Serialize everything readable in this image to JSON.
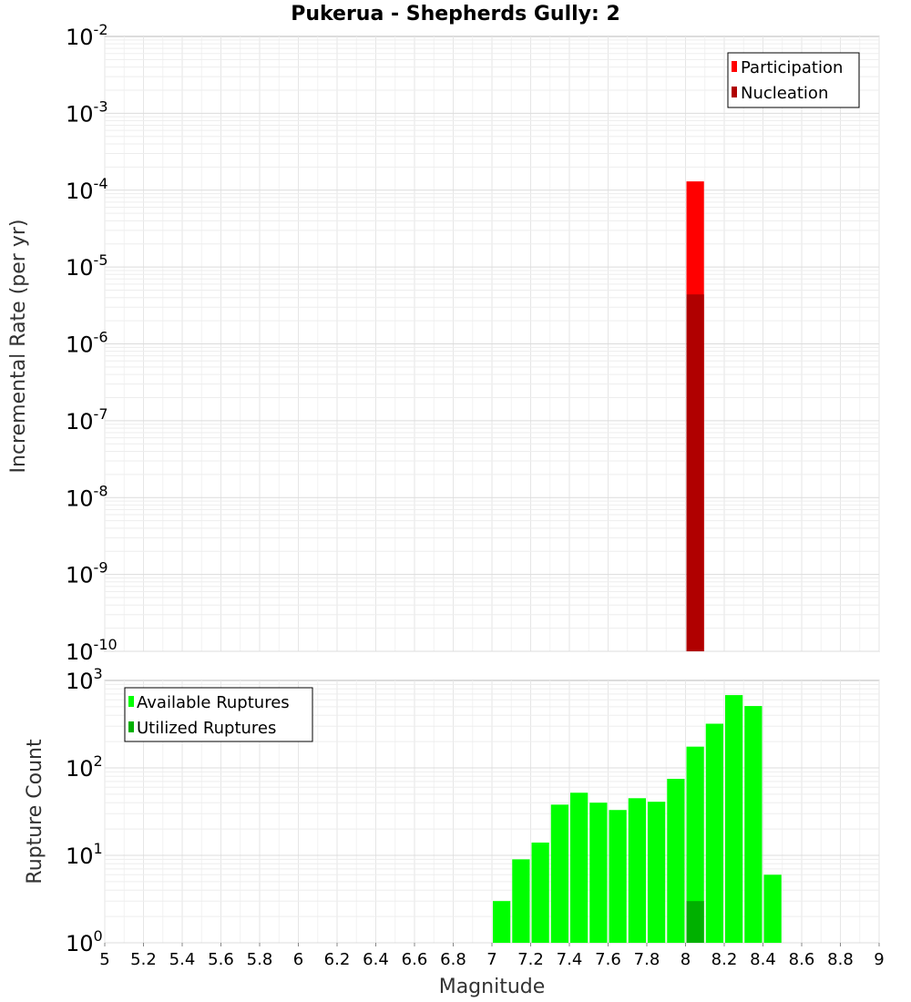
{
  "chart_data": [
    {
      "type": "bar",
      "title": "Pukerua - Shepherds Gully: 2",
      "xlabel": "Magnitude",
      "ylabel": "Incremental Rate (per yr)",
      "yscale": "log",
      "ylim_exp": [
        -10,
        -2
      ],
      "xlim": [
        5,
        9
      ],
      "y_tick_exponents": [
        "-10",
        "-9",
        "-8",
        "-7",
        "-6",
        "-5",
        "-4",
        "-3",
        "-2"
      ],
      "legend_position": "top-right",
      "series": [
        {
          "name": "Participation",
          "color": "#ff0000",
          "points": [
            {
              "x": 8.05,
              "y": 0.00013
            }
          ]
        },
        {
          "name": "Nucleation",
          "color": "#b00000",
          "points": [
            {
              "x": 8.05,
              "y": 4.4e-06
            }
          ]
        }
      ]
    },
    {
      "type": "bar",
      "xlabel": "Magnitude",
      "ylabel": "Rupture Count",
      "yscale": "log",
      "ylim_exp": [
        0,
        3
      ],
      "xlim": [
        5,
        9
      ],
      "y_tick_exponents": [
        "0",
        "1",
        "2",
        "3"
      ],
      "x_ticks": [
        "5",
        "5.2",
        "5.4",
        "5.6",
        "5.8",
        "6",
        "6.2",
        "6.4",
        "6.6",
        "6.8",
        "7",
        "7.2",
        "7.4",
        "7.6",
        "7.8",
        "8",
        "8.2",
        "8.4",
        "8.6",
        "8.8",
        "9"
      ],
      "legend_position": "top-left",
      "series": [
        {
          "name": "Available Ruptures",
          "color": "#00ff00",
          "points": [
            {
              "x": 6.55,
              "y": 1
            },
            {
              "x": 6.85,
              "y": 1
            },
            {
              "x": 6.95,
              "y": 1
            },
            {
              "x": 7.05,
              "y": 3
            },
            {
              "x": 7.15,
              "y": 9
            },
            {
              "x": 7.25,
              "y": 14
            },
            {
              "x": 7.35,
              "y": 38
            },
            {
              "x": 7.45,
              "y": 52
            },
            {
              "x": 7.55,
              "y": 40
            },
            {
              "x": 7.65,
              "y": 33
            },
            {
              "x": 7.75,
              "y": 45
            },
            {
              "x": 7.85,
              "y": 41
            },
            {
              "x": 7.95,
              "y": 75
            },
            {
              "x": 8.05,
              "y": 175
            },
            {
              "x": 8.15,
              "y": 320
            },
            {
              "x": 8.25,
              "y": 680
            },
            {
              "x": 8.35,
              "y": 510
            },
            {
              "x": 8.45,
              "y": 6
            }
          ]
        },
        {
          "name": "Utilized Ruptures",
          "color": "#00b000",
          "points": [
            {
              "x": 8.05,
              "y": 3
            }
          ]
        }
      ]
    }
  ]
}
